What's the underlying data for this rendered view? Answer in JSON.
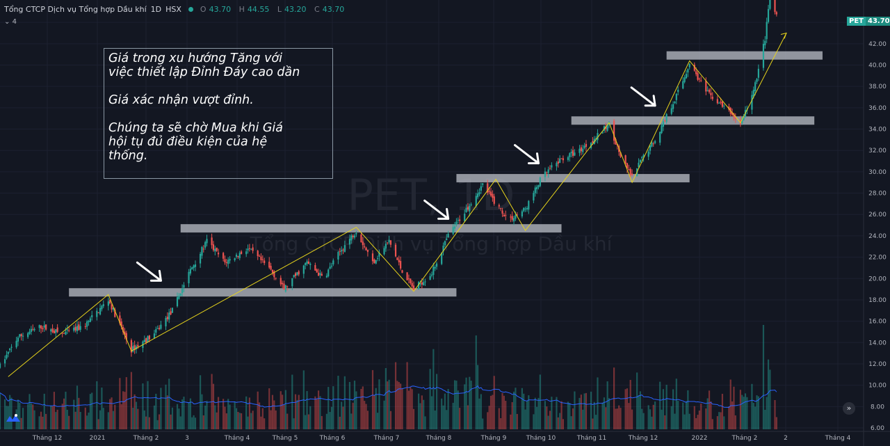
{
  "header": {
    "symbol_name": "Tổng CTCP Dịch vụ Tổng hợp Dầu khí",
    "interval": "1D",
    "exchange": "HSX",
    "ohlc": [
      {
        "label": "O",
        "value": "43.70"
      },
      {
        "label": "H",
        "value": "44.55"
      },
      {
        "label": "L",
        "value": "43.20"
      },
      {
        "label": "C",
        "value": "43.70"
      }
    ],
    "indicator_count": "4"
  },
  "watermark": {
    "symbol": "PET, 1D",
    "name": "Tổng CTCP Dịch vụ Tổng hợp Dầu khí"
  },
  "annotation": {
    "paragraph_1": "Giá trong xu hướng Tăng với\nviệc thiết lập Đỉnh Đáy cao dần",
    "paragraph_2": "Giá xác nhận vượt đỉnh.",
    "paragraph_3": "Chúng ta sẽ chờ Mua khi Giá\nhội tụ đủ điều kiện của hệ\nthống."
  },
  "price_tag": {
    "symbol": "PET",
    "value": "43.70"
  },
  "scroll_label": "»",
  "colors": {
    "background": "#131722",
    "up": "#26a69a",
    "down": "#ef5350",
    "zone": "#b2b5be",
    "trend": "#e6d31c",
    "ma": "#2962ff",
    "text": "#d1d4dc"
  },
  "chart_data": {
    "type": "candlestick",
    "y_axis": {
      "ticks": [
        "6.00",
        "8.00",
        "10.00",
        "12.00",
        "14.00",
        "16.00",
        "18.00",
        "20.00",
        "22.00",
        "24.00",
        "26.00",
        "28.00",
        "30.00",
        "32.00",
        "34.00",
        "36.00",
        "38.00",
        "40.00",
        "42.00",
        "44.00"
      ],
      "range": [
        6,
        44.4
      ]
    },
    "x_axis": {
      "ticks": [
        "Tháng 12",
        "2021",
        "Tháng 2",
        "3",
        "Tháng 4",
        "Tháng 5",
        "Tháng 6",
        "Tháng 7",
        "Tháng 8",
        "Tháng 9",
        "Tháng 10",
        "Tháng 11",
        "Tháng 12",
        "2022",
        "Tháng 2",
        "2",
        "Tháng 4"
      ],
      "range": [
        "2020-11-20",
        "2022-04-30"
      ]
    },
    "price_path": [
      [
        "2020-11-20",
        11.8
      ],
      [
        "2020-12-01",
        14.5
      ],
      [
        "2020-12-15",
        15.5
      ],
      [
        "2020-12-28",
        14.8
      ],
      [
        "2021-01-10",
        15.5
      ],
      [
        "2021-01-25",
        18.0
      ],
      [
        "2021-02-08",
        13.3
      ],
      [
        "2021-02-22",
        14.8
      ],
      [
        "2021-03-05",
        17.0
      ],
      [
        "2021-03-15",
        20.5
      ],
      [
        "2021-03-26",
        23.5
      ],
      [
        "2021-04-06",
        21.5
      ],
      [
        "2021-04-20",
        22.8
      ],
      [
        "2021-05-04",
        20.8
      ],
      [
        "2021-05-12",
        19.0
      ],
      [
        "2021-05-26",
        21.5
      ],
      [
        "2021-06-05",
        20.0
      ],
      [
        "2021-06-15",
        22.5
      ],
      [
        "2021-06-25",
        24.5
      ],
      [
        "2021-07-05",
        21.5
      ],
      [
        "2021-07-15",
        23.5
      ],
      [
        "2021-07-22",
        21.0
      ],
      [
        "2021-07-30",
        19.0
      ],
      [
        "2021-08-10",
        20.5
      ],
      [
        "2021-08-20",
        24.0
      ],
      [
        "2021-08-31",
        26.5
      ],
      [
        "2021-09-10",
        28.8
      ],
      [
        "2021-09-18",
        27.0
      ],
      [
        "2021-09-26",
        25.5
      ],
      [
        "2021-10-06",
        26.5
      ],
      [
        "2021-10-16",
        29.5
      ],
      [
        "2021-10-28",
        31.2
      ],
      [
        "2021-11-08",
        32.0
      ],
      [
        "2021-11-20",
        33.5
      ],
      [
        "2021-11-26",
        34.5
      ],
      [
        "2021-12-04",
        31.0
      ],
      [
        "2021-12-10",
        29.5
      ],
      [
        "2021-12-17",
        31.5
      ],
      [
        "2021-12-24",
        33.0
      ],
      [
        "2022-01-04",
        36.5
      ],
      [
        "2022-01-10",
        38.5
      ],
      [
        "2022-01-14",
        40.2
      ],
      [
        "2022-01-24",
        37.5
      ],
      [
        "2022-02-08",
        35.5
      ],
      [
        "2022-02-14",
        34.5
      ],
      [
        "2022-02-22",
        37.5
      ],
      [
        "2022-03-01",
        42.5
      ],
      [
        "2022-03-04",
        46.5
      ],
      [
        "2022-03-08",
        44.5
      ]
    ],
    "zones": [
      {
        "price": 18.7,
        "from": "2021-01-01",
        "to": "2021-08-25"
      },
      {
        "price": 24.7,
        "from": "2021-03-10",
        "to": "2021-10-28"
      },
      {
        "price": 29.4,
        "from": "2021-08-25",
        "to": "2022-01-14"
      },
      {
        "price": 34.8,
        "from": "2021-11-03",
        "to": "2022-03-31"
      },
      {
        "price": 40.9,
        "from": "2021-12-31",
        "to": "2022-04-05"
      }
    ],
    "trend_line": [
      [
        "2020-11-25",
        10.8
      ],
      [
        "2021-01-25",
        18.5
      ],
      [
        "2021-02-08",
        13.2
      ],
      [
        "2021-06-25",
        24.8
      ],
      [
        "2021-07-30",
        18.8
      ],
      [
        "2021-09-18",
        29.3
      ],
      [
        "2021-10-06",
        24.5
      ],
      [
        "2021-11-26",
        34.6
      ],
      [
        "2021-12-10",
        29.0
      ],
      [
        "2022-01-14",
        40.4
      ],
      [
        "2022-02-14",
        34.6
      ],
      [
        "2022-03-14",
        43.0
      ]
    ],
    "arrows": [
      [
        "2021-02-26",
        19.8
      ],
      [
        "2021-08-20",
        25.6
      ],
      [
        "2021-10-14",
        30.8
      ],
      [
        "2021-12-24",
        36.2
      ]
    ]
  }
}
